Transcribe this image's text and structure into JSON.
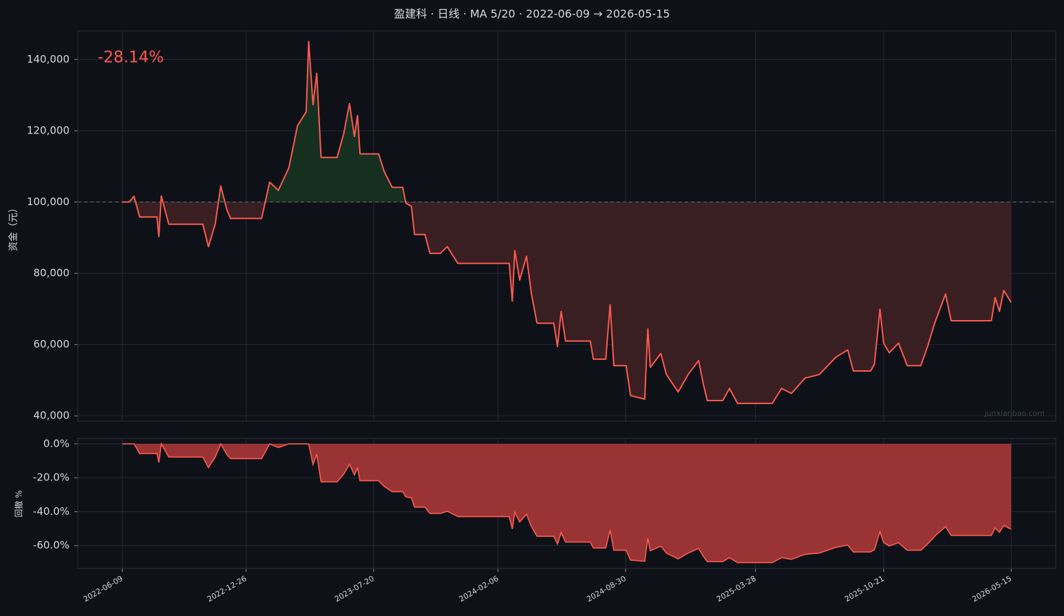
{
  "chart_data": [
    {
      "type": "area-line",
      "title": "盈建科 · 日线 · MA 5/20 · 2022-06-09 → 2026-05-15",
      "y_label": "资金（元）",
      "annotation": "-28.14%",
      "watermark": "junxianbao.com",
      "color": "#ff5a4f",
      "baseline": 100000,
      "grid": true,
      "xlim": [
        "2022-03-29",
        "2026-07-26"
      ],
      "ylim": [
        38500,
        148000
      ],
      "yticks": [
        {
          "value": 40000,
          "label": "40,000"
        },
        {
          "value": 60000,
          "label": "60,000"
        },
        {
          "value": 80000,
          "label": "80,000"
        },
        {
          "value": 100000,
          "label": "100,000"
        },
        {
          "value": 120000,
          "label": "120,000"
        },
        {
          "value": 140000,
          "label": "140,000"
        }
      ],
      "x": [
        "2022-06-09",
        "2022-06-20",
        "2022-06-28",
        "2022-07-07",
        "2022-08-04",
        "2022-08-07",
        "2022-08-11",
        "2022-08-23",
        "2022-10-17",
        "2022-10-26",
        "2022-11-06",
        "2022-11-15",
        "2022-11-25",
        "2022-12-01",
        "2023-01-20",
        "2023-02-02",
        "2023-02-16",
        "2023-03-05",
        "2023-03-19",
        "2023-04-02",
        "2023-04-06",
        "2023-04-13",
        "2023-04-19",
        "2023-04-26",
        "2023-05-22",
        "2023-06-02",
        "2023-06-11",
        "2023-06-19",
        "2023-06-24",
        "2023-06-28",
        "2023-07-28",
        "2023-08-06",
        "2023-08-19",
        "2023-09-05",
        "2023-09-10",
        "2023-09-19",
        "2023-09-24",
        "2023-10-11",
        "2023-10-19",
        "2023-11-05",
        "2023-11-16",
        "2023-12-03",
        "2024-02-24",
        "2024-02-29",
        "2024-03-04",
        "2024-03-12",
        "2024-03-23",
        "2024-03-31",
        "2024-04-09",
        "2024-05-06",
        "2024-05-12",
        "2024-05-18",
        "2024-05-25",
        "2024-07-04",
        "2024-07-09",
        "2024-07-29",
        "2024-08-05",
        "2024-08-11",
        "2024-08-31",
        "2024-09-07",
        "2024-09-30",
        "2024-10-05",
        "2024-10-09",
        "2024-10-26",
        "2024-11-04",
        "2024-11-23",
        "2024-12-09",
        "2024-12-26",
        "2025-01-03",
        "2025-01-09",
        "2025-02-03",
        "2025-02-14",
        "2025-02-27",
        "2025-04-24",
        "2025-05-09",
        "2025-05-25",
        "2025-06-16",
        "2025-07-09",
        "2025-08-05",
        "2025-08-24",
        "2025-09-02",
        "2025-09-30",
        "2025-10-06",
        "2025-10-15",
        "2025-10-21",
        "2025-10-30",
        "2025-11-14",
        "2025-11-28",
        "2025-12-20",
        "2025-12-31",
        "2026-01-12",
        "2026-01-29",
        "2026-02-07",
        "2026-04-13",
        "2026-04-19",
        "2026-04-26",
        "2026-05-03",
        "2026-05-15"
      ],
      "values": [
        100000,
        100000,
        101600,
        95800,
        95800,
        90300,
        101700,
        93800,
        93800,
        87500,
        93800,
        104500,
        97800,
        95400,
        95400,
        105600,
        103300,
        109600,
        121400,
        125300,
        145000,
        127300,
        136100,
        112500,
        112500,
        119400,
        127600,
        118400,
        124300,
        113500,
        113500,
        108600,
        104100,
        104100,
        99700,
        98800,
        90900,
        90900,
        85600,
        85600,
        87500,
        82800,
        82800,
        72200,
        86400,
        78100,
        84800,
        74200,
        66000,
        66000,
        59500,
        69300,
        61000,
        61000,
        55900,
        55900,
        71200,
        54100,
        54100,
        45700,
        44700,
        64400,
        53600,
        57500,
        51600,
        46700,
        51600,
        55500,
        48600,
        44300,
        44300,
        47700,
        43500,
        43500,
        47700,
        46300,
        50600,
        51600,
        56500,
        58500,
        52600,
        52600,
        54500,
        69900,
        60400,
        57700,
        60400,
        54100,
        54100,
        59500,
        66300,
        74200,
        66700,
        66700,
        73200,
        69300,
        75200,
        71860
      ]
    },
    {
      "type": "drawdown",
      "y_label": "回撤 %",
      "color": "#ff5a4f",
      "grid": true,
      "xlim": [
        "2022-03-29",
        "2026-07-26"
      ],
      "ylim": [
        -73.5,
        3.2
      ],
      "yticks": [
        {
          "value": -60,
          "label": "-60.0%"
        },
        {
          "value": -40,
          "label": "-40.0%"
        },
        {
          "value": -20,
          "label": "-20.0%"
        },
        {
          "value": 0,
          "label": "0.0%"
        }
      ],
      "xticks": [
        "2022-06-09",
        "2022-12-26",
        "2023-07-20",
        "2024-02-06",
        "2024-08-30",
        "2025-03-28",
        "2025-10-21",
        "2026-05-15"
      ],
      "x": [
        "2022-06-09",
        "2022-06-20",
        "2022-06-28",
        "2022-07-07",
        "2022-08-04",
        "2022-08-07",
        "2022-08-11",
        "2022-08-23",
        "2022-10-17",
        "2022-10-26",
        "2022-11-06",
        "2022-11-15",
        "2022-11-25",
        "2022-12-01",
        "2023-01-20",
        "2023-02-02",
        "2023-02-16",
        "2023-03-05",
        "2023-03-19",
        "2023-04-02",
        "2023-04-06",
        "2023-04-13",
        "2023-04-19",
        "2023-04-26",
        "2023-05-22",
        "2023-06-02",
        "2023-06-11",
        "2023-06-19",
        "2023-06-24",
        "2023-06-28",
        "2023-07-28",
        "2023-08-06",
        "2023-08-19",
        "2023-09-05",
        "2023-09-10",
        "2023-09-19",
        "2023-09-24",
        "2023-10-11",
        "2023-10-19",
        "2023-11-05",
        "2023-11-16",
        "2023-12-03",
        "2024-02-24",
        "2024-02-29",
        "2024-03-04",
        "2024-03-12",
        "2024-03-23",
        "2024-03-31",
        "2024-04-09",
        "2024-05-06",
        "2024-05-12",
        "2024-05-18",
        "2024-05-25",
        "2024-07-04",
        "2024-07-09",
        "2024-07-29",
        "2024-08-05",
        "2024-08-11",
        "2024-08-31",
        "2024-09-07",
        "2024-09-30",
        "2024-10-05",
        "2024-10-09",
        "2024-10-26",
        "2024-11-04",
        "2024-11-23",
        "2024-12-09",
        "2024-12-26",
        "2025-01-03",
        "2025-01-09",
        "2025-02-03",
        "2025-02-14",
        "2025-02-27",
        "2025-04-24",
        "2025-05-09",
        "2025-05-25",
        "2025-06-16",
        "2025-07-09",
        "2025-08-05",
        "2025-08-24",
        "2025-09-02",
        "2025-09-30",
        "2025-10-06",
        "2025-10-15",
        "2025-10-21",
        "2025-10-30",
        "2025-11-14",
        "2025-11-28",
        "2025-12-20",
        "2025-12-31",
        "2026-01-12",
        "2026-01-29",
        "2026-02-07",
        "2026-04-13",
        "2026-04-19",
        "2026-04-26",
        "2026-05-03",
        "2026-05-15"
      ],
      "values": [
        0,
        0,
        0,
        -5.7,
        -5.7,
        -11.1,
        0,
        -7.8,
        -7.8,
        -14,
        -7.8,
        0,
        -6.4,
        -8.7,
        -8.7,
        0,
        -2.2,
        0,
        0,
        0,
        0,
        -12.2,
        -6.1,
        -22.4,
        -22.4,
        -17.7,
        -12,
        -18.3,
        -14.3,
        -21.7,
        -21.7,
        -25.1,
        -28.2,
        -28.2,
        -31.2,
        -31.9,
        -37.3,
        -37.3,
        -41,
        -41,
        -39.7,
        -42.9,
        -42.9,
        -50.2,
        -40.4,
        -46.1,
        -41.5,
        -48.8,
        -54.5,
        -54.5,
        -59,
        -52.2,
        -57.9,
        -57.9,
        -61.4,
        -61.4,
        -50.9,
        -62.7,
        -62.7,
        -68.5,
        -69.2,
        -55.6,
        -63,
        -60.3,
        -64.4,
        -67.8,
        -64.4,
        -61.7,
        -66.5,
        -69.4,
        -69.4,
        -67.1,
        -70,
        -70,
        -67.1,
        -68.1,
        -65.1,
        -64.4,
        -61,
        -59.7,
        -63.7,
        -63.7,
        -62.4,
        -51.8,
        -58.3,
        -60.2,
        -58.3,
        -62.7,
        -62.7,
        -59,
        -54.3,
        -48.8,
        -54,
        -54,
        -49.5,
        -52.2,
        -48.1,
        -50.4
      ]
    }
  ]
}
